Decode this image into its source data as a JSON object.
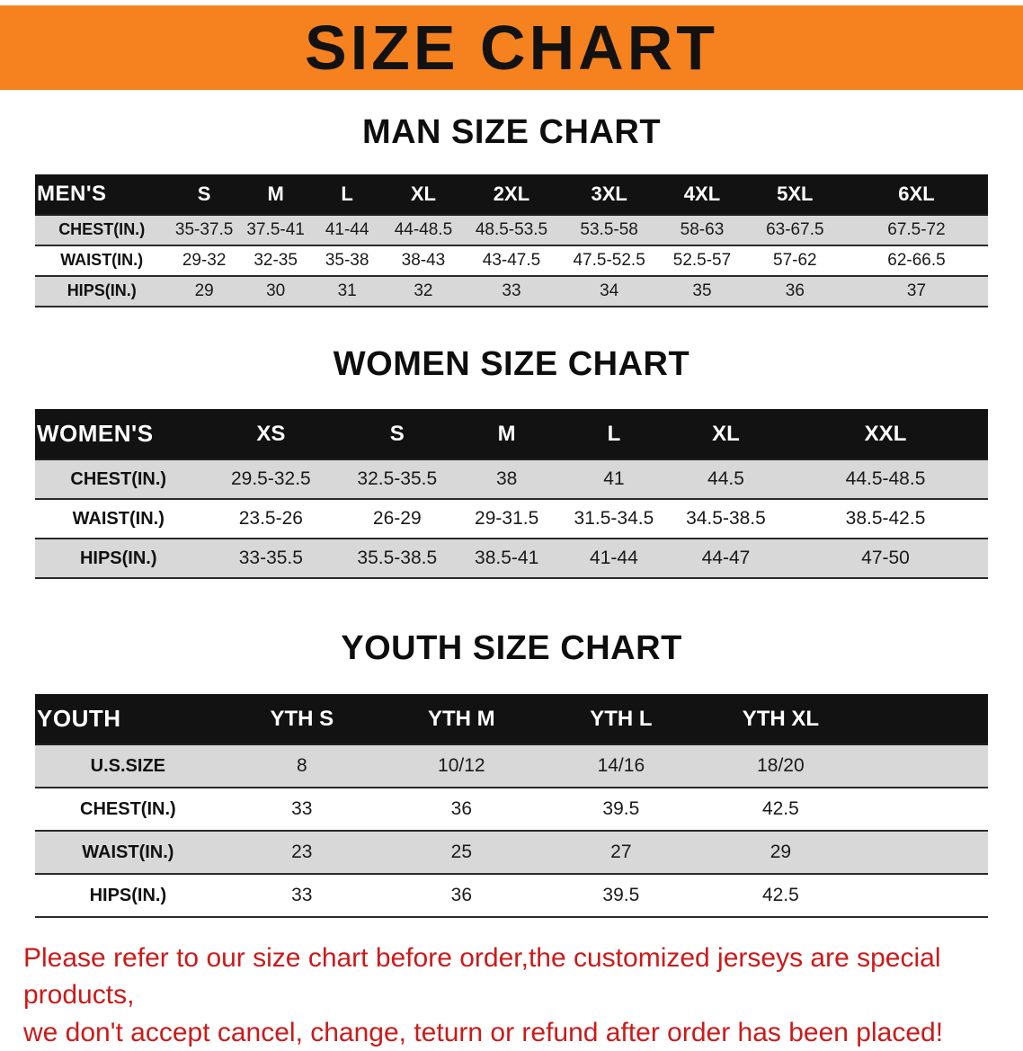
{
  "banner": {
    "title": "SIZE CHART",
    "bg_color": "#F5821E"
  },
  "sections": [
    {
      "id": "men",
      "heading": "MAN SIZE CHART",
      "table": {
        "header": [
          "MEN'S",
          "S",
          "M",
          "L",
          "XL",
          "2XL",
          "3XL",
          "4XL",
          "5XL",
          "6XL"
        ],
        "rows": [
          [
            "CHEST(IN.)",
            "35-37.5",
            "37.5-41",
            "41-44",
            "44-48.5",
            "48.5-53.5",
            "53.5-58",
            "58-63",
            "63-67.5",
            "67.5-72"
          ],
          [
            "WAIST(IN.)",
            "29-32",
            "32-35",
            "35-38",
            "38-43",
            "43-47.5",
            "47.5-52.5",
            "52.5-57",
            "57-62",
            "62-66.5"
          ],
          [
            "HIPS(IN.)",
            "29",
            "30",
            "31",
            "32",
            "33",
            "34",
            "35",
            "36",
            "37"
          ]
        ]
      }
    },
    {
      "id": "women",
      "heading": "WOMEN SIZE CHART",
      "table": {
        "header": [
          "WOMEN'S",
          "XS",
          "S",
          "M",
          "L",
          "XL",
          "XXL"
        ],
        "rows": [
          [
            "CHEST(IN.)",
            "29.5-32.5",
            "32.5-35.5",
            "38",
            "41",
            "44.5",
            "44.5-48.5"
          ],
          [
            "WAIST(IN.)",
            "23.5-26",
            "26-29",
            "29-31.5",
            "31.5-34.5",
            "34.5-38.5",
            "38.5-42.5"
          ],
          [
            "HIPS(IN.)",
            "33-35.5",
            "35.5-38.5",
            "38.5-41",
            "41-44",
            "44-47",
            "47-50"
          ]
        ]
      }
    },
    {
      "id": "youth",
      "heading": "YOUTH SIZE CHART",
      "table": {
        "header": [
          "YOUTH",
          "YTH S",
          "YTH M",
          "YTH L",
          "YTH XL"
        ],
        "rows": [
          [
            "U.S.SIZE",
            "8",
            "10/12",
            "14/16",
            "18/20"
          ],
          [
            "CHEST(IN.)",
            "33",
            "36",
            "39.5",
            "42.5"
          ],
          [
            "WAIST(IN.)",
            "23",
            "25",
            "27",
            "29"
          ],
          [
            "HIPS(IN.)",
            "33",
            "36",
            "39.5",
            "42.5"
          ]
        ]
      }
    }
  ],
  "disclaimer": {
    "line1": "Please refer to our size chart before order,the customized jerseys are special products,",
    "line2": "we don't accept cancel, change, teturn or refund after order has been placed!",
    "color": "#cc1a1a"
  }
}
